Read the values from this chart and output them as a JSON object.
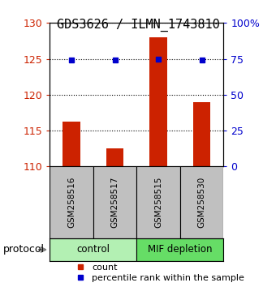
{
  "title": "GDS3626 / ILMN_1743810",
  "samples": [
    "GSM258516",
    "GSM258517",
    "GSM258515",
    "GSM258530"
  ],
  "red_values": [
    116.2,
    112.5,
    128.0,
    119.0
  ],
  "blue_values": [
    74.0,
    74.0,
    74.5,
    74.0
  ],
  "red_baseline": 110,
  "ylim_left": [
    110,
    130
  ],
  "ylim_right": [
    0,
    100
  ],
  "yticks_left": [
    110,
    115,
    120,
    125,
    130
  ],
  "yticks_right": [
    0,
    25,
    50,
    75,
    100
  ],
  "ytick_labels_right": [
    "0",
    "25",
    "50",
    "75",
    "100%"
  ],
  "groups": [
    {
      "label": "control",
      "indices": [
        0,
        1
      ],
      "color": "#b3f0b3"
    },
    {
      "label": "MIF depletion",
      "indices": [
        2,
        3
      ],
      "color": "#66dd66"
    }
  ],
  "bar_color": "#cc2200",
  "dot_color": "#0000cc",
  "protocol_label": "protocol",
  "legend": [
    {
      "color": "#cc2200",
      "label": "count"
    },
    {
      "color": "#0000cc",
      "label": "percentile rank within the sample"
    }
  ],
  "axis_color_left": "#cc2200",
  "axis_color_right": "#0000cc",
  "bar_width": 0.4,
  "tick_box_color": "#c0c0c0",
  "dotted_grid_color": "black",
  "background_color": "#ffffff",
  "title_fontsize": 11,
  "axis_label_fontsize": 9,
  "legend_fontsize": 8
}
